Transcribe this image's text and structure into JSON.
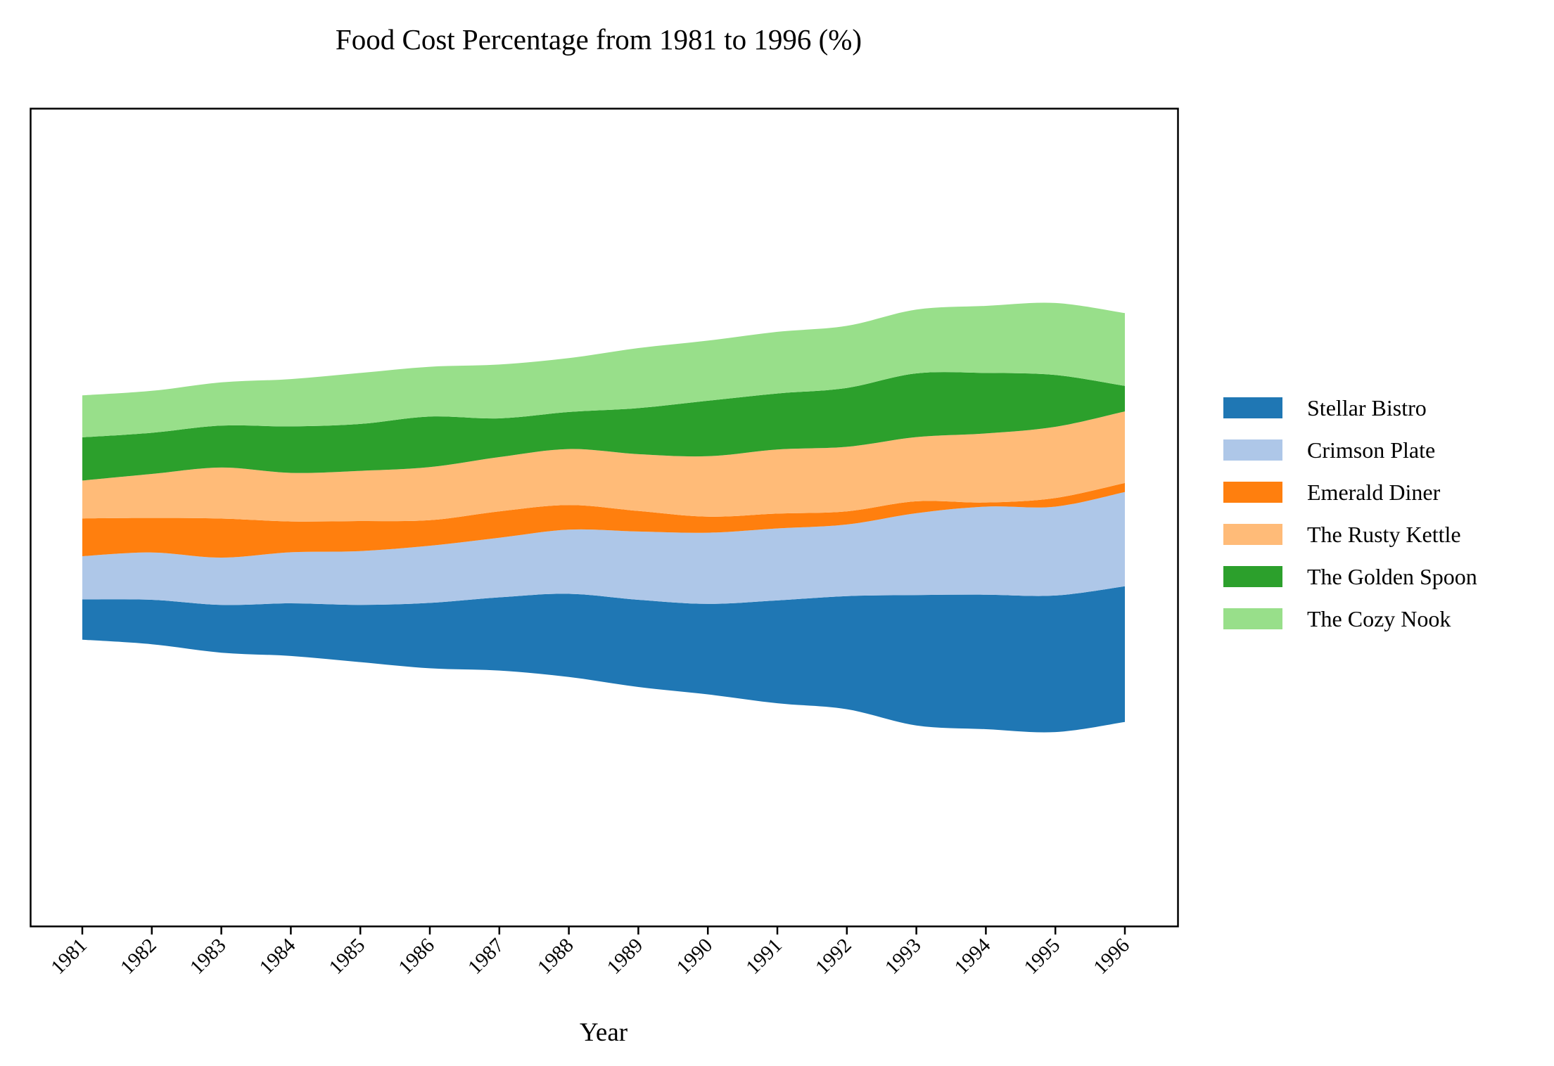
{
  "chart_data": {
    "type": "area",
    "title": "Food Cost Percentage from 1981 to 1996 (%)",
    "xlabel": "Year",
    "ylabel": "",
    "baseline": "symmetric (stream)",
    "grid": false,
    "legend_position": "center-right",
    "categories": [
      "1981",
      "1982",
      "1983",
      "1984",
      "1985",
      "1986",
      "1987",
      "1988",
      "1989",
      "1990",
      "1991",
      "1992",
      "1993",
      "1994",
      "1995",
      "1996"
    ],
    "series": [
      {
        "name": "Stellar Bistro",
        "color": "#1f77b4",
        "values": [
          9.8,
          10.8,
          11.6,
          12.8,
          13.9,
          15.9,
          17.8,
          20.2,
          21.2,
          22.0,
          25.0,
          27.5,
          31.7,
          32.7,
          33.2,
          33.0
        ]
      },
      {
        "name": "Crimson Plate",
        "color": "#aec7e8",
        "values": [
          10.5,
          11.5,
          11.5,
          12.4,
          13.1,
          13.9,
          14.5,
          15.6,
          16.6,
          17.3,
          17.5,
          17.4,
          19.9,
          21.4,
          21.6,
          22.9
        ]
      },
      {
        "name": "Emerald Diner",
        "color": "#ff7f0e",
        "values": [
          9.2,
          8.4,
          9.5,
          7.5,
          7.3,
          6.2,
          6.4,
          6.0,
          5.0,
          3.9,
          3.6,
          3.2,
          2.9,
          1.0,
          2.1,
          2.2
        ]
      },
      {
        "name": "The Rusty Kettle",
        "color": "#ffbb78",
        "values": [
          9.2,
          10.7,
          12.4,
          11.8,
          12.2,
          12.9,
          13.2,
          13.6,
          13.8,
          14.7,
          15.6,
          15.7,
          15.6,
          16.8,
          17.3,
          17.4
        ]
      },
      {
        "name": "The Golden Spoon",
        "color": "#2ca02c",
        "values": [
          10.5,
          10.0,
          10.2,
          11.3,
          11.4,
          12.3,
          9.4,
          9.0,
          11.2,
          13.5,
          13.6,
          14.3,
          15.5,
          14.7,
          12.6,
          6.2
        ]
      },
      {
        "name": "The Cozy Nook",
        "color": "#98df8a",
        "values": [
          10.2,
          10.2,
          10.5,
          11.5,
          12.4,
          12.1,
          13.1,
          13.1,
          14.6,
          14.6,
          15.0,
          15.1,
          15.5,
          16.3,
          17.5,
          17.7
        ]
      }
    ]
  }
}
